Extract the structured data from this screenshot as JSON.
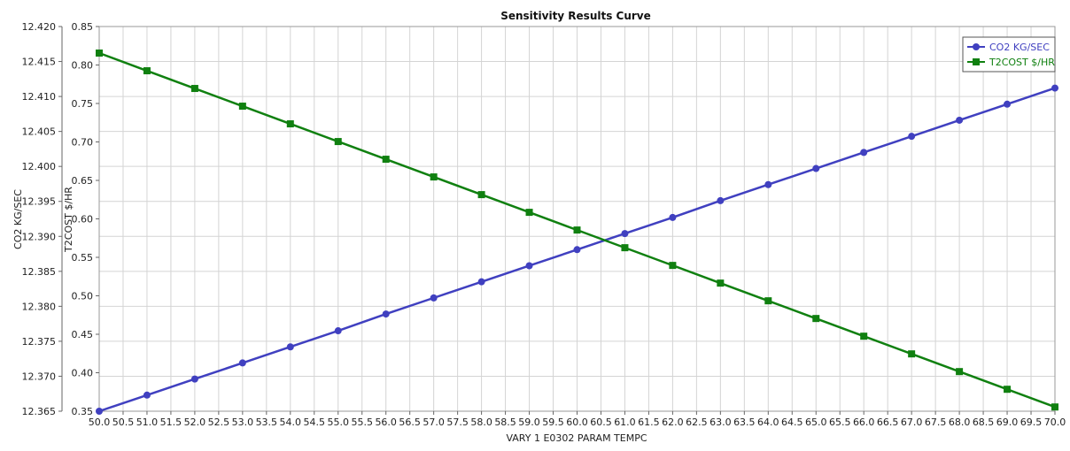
{
  "chart_data": {
    "type": "line",
    "title": "Sensitivity Results Curve",
    "xlabel": "VARY  1 E0302 PARAM TEMPC",
    "x": [
      50,
      51,
      52,
      53,
      54,
      55,
      56,
      57,
      58,
      59,
      60,
      61,
      62,
      63,
      64,
      65,
      66,
      67,
      68,
      69,
      70
    ],
    "xlim": [
      50,
      70
    ],
    "x_tick_step": 0.5,
    "y_axes": [
      {
        "label": "CO2 KG/SEC",
        "lim": [
          12.365,
          12.42
        ],
        "ticks": [
          "12.365",
          "12.370",
          "12.375",
          "12.380",
          "12.385",
          "12.390",
          "12.395",
          "12.400",
          "12.405",
          "12.410",
          "12.415",
          "12.420"
        ]
      },
      {
        "label": "T2COST $/HR",
        "lim": [
          0.35,
          0.85
        ],
        "ticks": [
          "0.35",
          "0.40",
          "0.45",
          "0.50",
          "0.55",
          "0.60",
          "0.65",
          "0.70",
          "0.75",
          "0.80",
          "0.85"
        ]
      }
    ],
    "series": [
      {
        "name": "CO2 KG/SEC",
        "axis": 0,
        "color": "#4040c0",
        "marker": "circle",
        "values": [
          12.365,
          12.3673,
          12.3696,
          12.3719,
          12.3742,
          12.3765,
          12.3789,
          12.3812,
          12.3835,
          12.3858,
          12.3881,
          12.3904,
          12.3927,
          12.3951,
          12.3974,
          12.3997,
          12.402,
          12.4043,
          12.4066,
          12.4089,
          12.4112
        ]
      },
      {
        "name": "T2COST $/HR",
        "axis": 1,
        "color": "#108010",
        "marker": "square",
        "values": [
          0.8155,
          0.7925,
          0.7695,
          0.7465,
          0.7235,
          0.7005,
          0.6775,
          0.6545,
          0.6315,
          0.6085,
          0.5855,
          0.5625,
          0.5395,
          0.5165,
          0.4935,
          0.4705,
          0.4475,
          0.4245,
          0.4015,
          0.3785,
          0.3555
        ]
      }
    ],
    "grid": true,
    "legend": "top-right"
  }
}
